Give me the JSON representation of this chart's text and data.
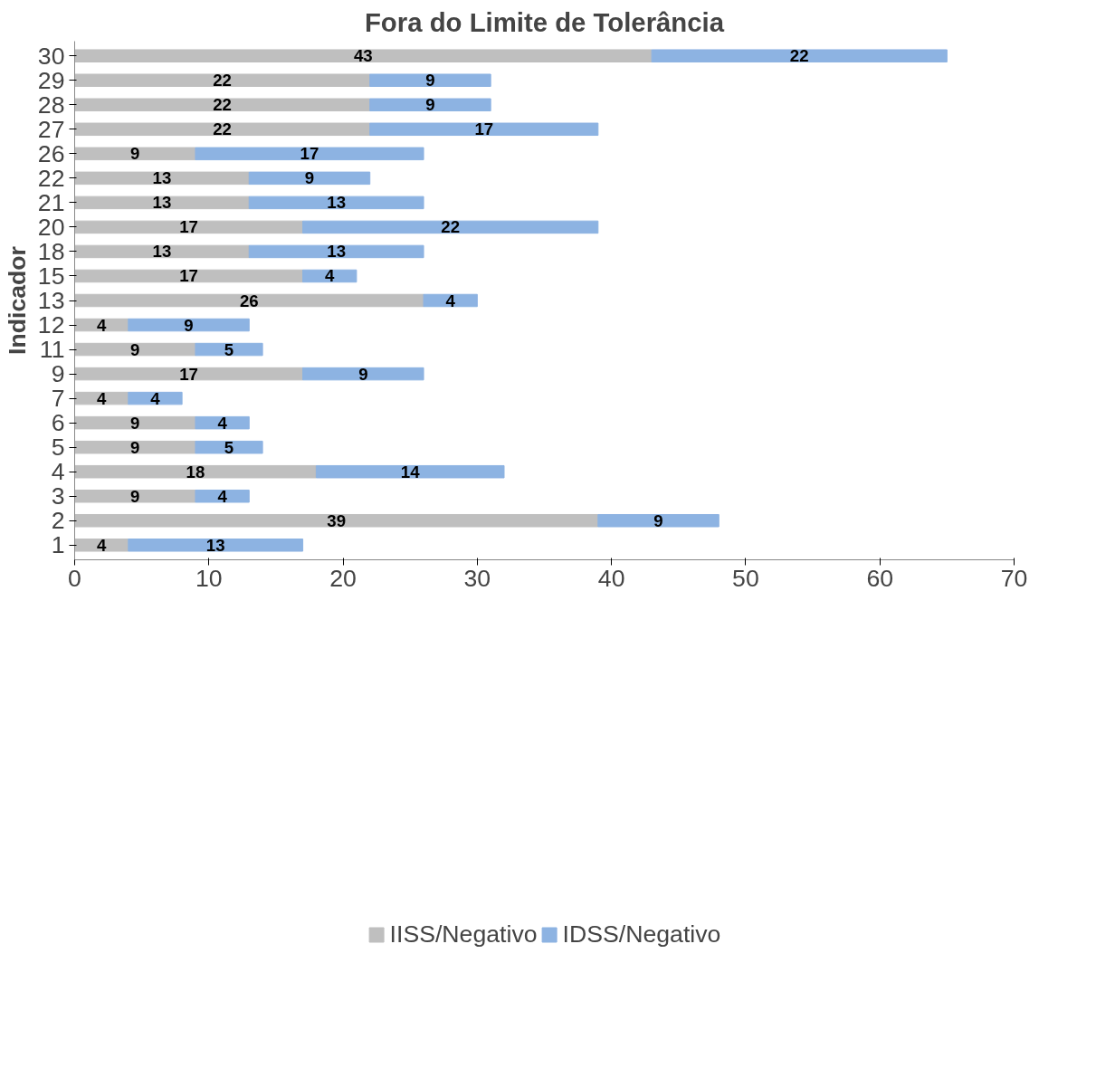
{
  "chart_data": {
    "type": "bar",
    "orientation": "horizontal",
    "stacked": true,
    "title": "Fora do Limite de Tolerância",
    "ylabel": "Indicador",
    "categories": [
      "30",
      "29",
      "28",
      "27",
      "26",
      "22",
      "21",
      "20",
      "18",
      "15",
      "13",
      "12",
      "11",
      "9",
      "7",
      "6",
      "5",
      "4",
      "3",
      "2",
      "1"
    ],
    "series": [
      {
        "name": "IISS/Negativo",
        "color": "#bfbfbf",
        "values": [
          43,
          22,
          22,
          22,
          9,
          13,
          13,
          17,
          13,
          17,
          26,
          4,
          9,
          17,
          4,
          9,
          9,
          18,
          9,
          39,
          4
        ]
      },
      {
        "name": "IDSS/Negativo",
        "color": "#8db3e2",
        "values": [
          22,
          9,
          9,
          17,
          17,
          9,
          13,
          22,
          13,
          4,
          4,
          9,
          5,
          9,
          4,
          4,
          5,
          14,
          4,
          9,
          13
        ]
      }
    ],
    "xlim": [
      0,
      70
    ],
    "xticks": [
      0,
      10,
      20,
      30,
      40,
      50,
      60,
      70
    ],
    "grid": false,
    "legend": "bottom",
    "data_labels": true
  }
}
